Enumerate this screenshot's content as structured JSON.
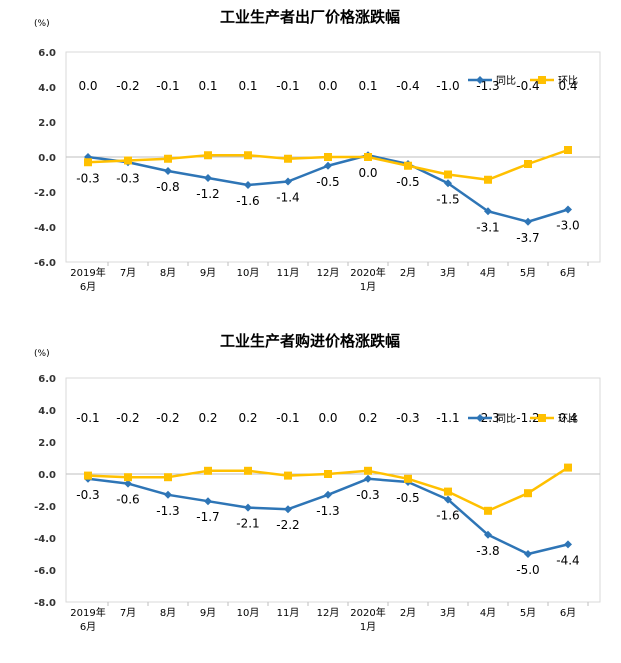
{
  "chart_data": [
    {
      "type": "line",
      "title": "工业生产者出厂价格涨跌幅",
      "unit_label": "(%)",
      "categories": [
        {
          "line1": "2019年",
          "line2": "6月"
        },
        {
          "line1": "7月",
          "line2": ""
        },
        {
          "line1": "8月",
          "line2": ""
        },
        {
          "line1": "9月",
          "line2": ""
        },
        {
          "line1": "10月",
          "line2": ""
        },
        {
          "line1": "11月",
          "line2": ""
        },
        {
          "line1": "12月",
          "line2": ""
        },
        {
          "line1": "2020年",
          "line2": "1月"
        },
        {
          "line1": "2月",
          "line2": ""
        },
        {
          "line1": "3月",
          "line2": ""
        },
        {
          "line1": "4月",
          "line2": ""
        },
        {
          "line1": "5月",
          "line2": ""
        },
        {
          "line1": "6月",
          "line2": ""
        }
      ],
      "yticks": [
        "6.0",
        "4.0",
        "2.0",
        "0.0",
        "-2.0",
        "-4.0",
        "-6.0"
      ],
      "ylim": [
        -6,
        6
      ],
      "legend_position": "top-right",
      "series": [
        {
          "name": "同比",
          "color": "#2e75b6",
          "marker": "diamond",
          "values": [
            0.0,
            -0.3,
            -0.8,
            -1.2,
            -1.6,
            -1.4,
            -0.5,
            0.1,
            -0.4,
            -1.5,
            -3.1,
            -3.7,
            -3.0
          ],
          "labels": [
            "0.0",
            "-0.3",
            "-0.8",
            "-1.2",
            "-1.6",
            "-1.4",
            "-0.5",
            "0.1",
            "-0.4",
            "-1.5",
            "-3.1",
            "-3.7",
            "-3.0"
          ]
        },
        {
          "name": "环比",
          "color": "#ffc000",
          "marker": "square",
          "values": [
            -0.3,
            -0.2,
            -0.1,
            0.1,
            0.1,
            -0.1,
            0.0,
            0.0,
            -0.5,
            -1.0,
            -1.3,
            -0.4,
            0.4
          ],
          "labels": [
            "-0.3",
            "-0.2",
            "-0.1",
            "0.1",
            "0.1",
            "-0.1",
            "0.0",
            "0.0",
            "-0.5",
            "-1.0",
            "-1.3",
            "-0.4",
            "0.4"
          ]
        }
      ]
    },
    {
      "type": "line",
      "title": "工业生产者购进价格涨跌幅",
      "unit_label": "(%)",
      "categories": [
        {
          "line1": "2019年",
          "line2": "6月"
        },
        {
          "line1": "7月",
          "line2": ""
        },
        {
          "line1": "8月",
          "line2": ""
        },
        {
          "line1": "9月",
          "line2": ""
        },
        {
          "line1": "10月",
          "line2": ""
        },
        {
          "line1": "11月",
          "line2": ""
        },
        {
          "line1": "12月",
          "line2": ""
        },
        {
          "line1": "2020年",
          "line2": "1月"
        },
        {
          "line1": "2月",
          "line2": ""
        },
        {
          "line1": "3月",
          "line2": ""
        },
        {
          "line1": "4月",
          "line2": ""
        },
        {
          "line1": "5月",
          "line2": ""
        },
        {
          "line1": "6月",
          "line2": ""
        }
      ],
      "yticks": [
        "6.0",
        "4.0",
        "2.0",
        "0.0",
        "-2.0",
        "-4.0",
        "-6.0",
        "-8.0"
      ],
      "ylim": [
        -8,
        6
      ],
      "legend_position": "top-right",
      "series": [
        {
          "name": "同比",
          "color": "#2e75b6",
          "marker": "diamond",
          "values": [
            -0.3,
            -0.6,
            -1.3,
            -1.7,
            -2.1,
            -2.2,
            -1.3,
            -0.3,
            -0.5,
            -1.6,
            -3.8,
            -5.0,
            -4.4
          ],
          "labels": [
            "-0.3",
            "-0.6",
            "-1.3",
            "-1.7",
            "-2.1",
            "-2.2",
            "-1.3",
            "-0.3",
            "-0.5",
            "-1.6",
            "-3.8",
            "-5.0",
            "-4.4"
          ]
        },
        {
          "name": "环比",
          "color": "#ffc000",
          "marker": "square",
          "values": [
            -0.1,
            -0.2,
            -0.2,
            0.2,
            0.2,
            -0.1,
            0.0,
            0.2,
            -0.3,
            -1.1,
            -2.3,
            -1.2,
            0.4
          ],
          "labels": [
            "-0.1",
            "-0.2",
            "-0.2",
            "0.2",
            "0.2",
            "-0.1",
            "0.0",
            "0.2",
            "-0.3",
            "-1.1",
            "-2.3",
            "-1.2",
            "0.4"
          ]
        }
      ]
    }
  ]
}
